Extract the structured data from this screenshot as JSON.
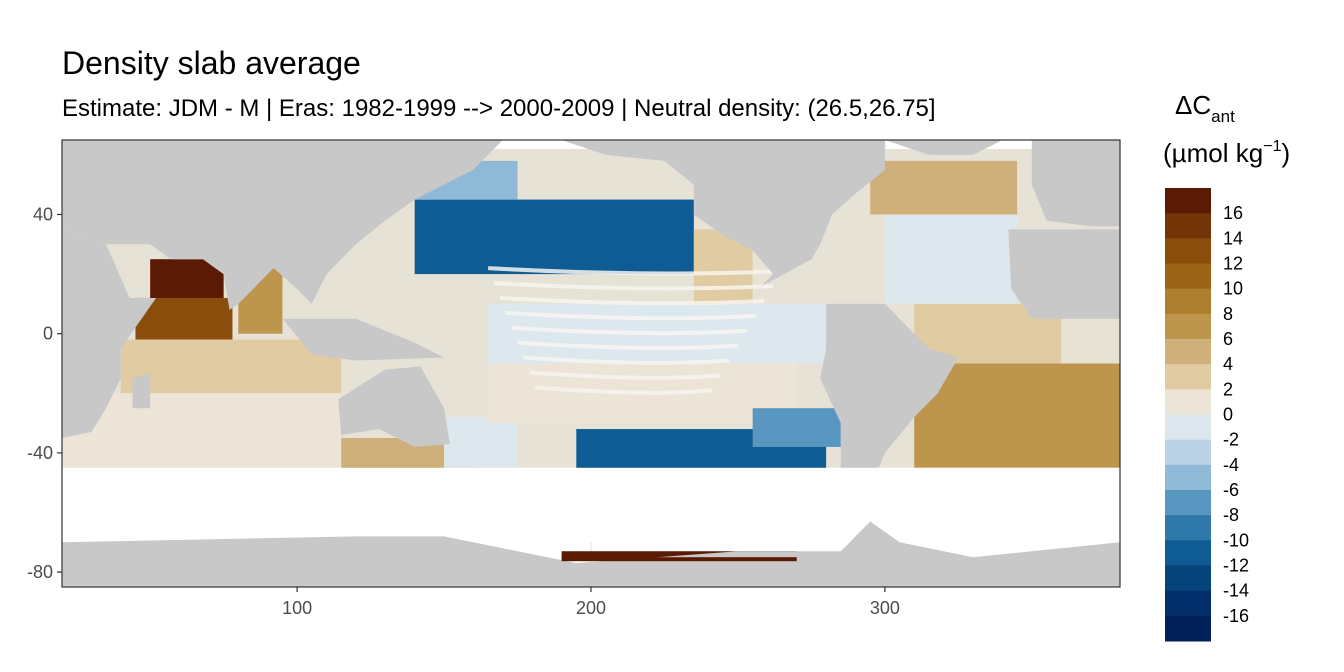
{
  "chart_data": {
    "type": "heatmap",
    "title": "Density slab average",
    "subtitle": "Estimate: JDM - M | Eras: 1982-1999 --> 2000-2009 | Neutral density: (26.5,26.75]",
    "xlabel": "",
    "ylabel": "",
    "xlim": [
      20,
      380
    ],
    "ylim": [
      -85,
      65
    ],
    "x_ticks": [
      100,
      200,
      300
    ],
    "y_ticks": [
      40,
      0,
      -40,
      -80
    ],
    "x_tick_labels": [
      "100",
      "200",
      "300"
    ],
    "y_tick_labels": [
      "40",
      "0",
      "-40",
      "-80"
    ],
    "grid": true,
    "land_color": "#c8c8c8",
    "legend": {
      "title_main": "ΔC",
      "title_sub": "ant",
      "title_units_prefix": "(µmol kg",
      "title_units_sup": "−1",
      "title_units_suffix": ")",
      "placement": "right",
      "labels": [
        "16",
        "14",
        "12",
        "10",
        "8",
        "6",
        "4",
        "2",
        "0",
        "-2",
        "-4",
        "-6",
        "-8",
        "-10",
        "-12",
        "-14",
        "-16"
      ],
      "bins": [
        {
          "lo": 16,
          "hi": 18,
          "color": "#5a1a04"
        },
        {
          "lo": 14,
          "hi": 16,
          "color": "#733407"
        },
        {
          "lo": 12,
          "hi": 14,
          "color": "#8b4d0b"
        },
        {
          "lo": 10,
          "hi": 12,
          "color": "#9c6417"
        },
        {
          "lo": 8,
          "hi": 10,
          "color": "#ad7e2d"
        },
        {
          "lo": 6,
          "hi": 8,
          "color": "#bd954d"
        },
        {
          "lo": 4,
          "hi": 6,
          "color": "#cfb07a"
        },
        {
          "lo": 2,
          "hi": 4,
          "color": "#e0cba3"
        },
        {
          "lo": 0,
          "hi": 2,
          "color": "#ece5d7"
        },
        {
          "lo": -2,
          "hi": 0,
          "color": "#dde8ee"
        },
        {
          "lo": -4,
          "hi": -2,
          "color": "#b9d2e3"
        },
        {
          "lo": -6,
          "hi": -4,
          "color": "#8fb9d6"
        },
        {
          "lo": -8,
          "hi": -6,
          "color": "#5a97c0"
        },
        {
          "lo": -10,
          "hi": -8,
          "color": "#2f78aa"
        },
        {
          "lo": -12,
          "hi": -10,
          "color": "#0f5b93"
        },
        {
          "lo": -14,
          "hi": -12,
          "color": "#05437b"
        },
        {
          "lo": -16,
          "hi": -14,
          "color": "#022f69"
        },
        {
          "lo": -18,
          "hi": -16,
          "color": "#01205a"
        }
      ]
    },
    "regions": [
      {
        "name": "arabian-sea-north",
        "lon": [
          50,
          75
        ],
        "lat": [
          8,
          25
        ],
        "value": 16
      },
      {
        "name": "arabian-sea",
        "lon": [
          45,
          78
        ],
        "lat": [
          -2,
          12
        ],
        "value": 12
      },
      {
        "name": "bay-of-bengal",
        "lon": [
          80,
          95
        ],
        "lat": [
          0,
          22
        ],
        "value": 7
      },
      {
        "name": "indian-ocean-tropical",
        "lon": [
          40,
          115
        ],
        "lat": [
          -20,
          -2
        ],
        "value": 3
      },
      {
        "name": "indian-ocean-south",
        "lon": [
          20,
          115
        ],
        "lat": [
          -45,
          -20
        ],
        "value": 1
      },
      {
        "name": "south-of-australia",
        "lon": [
          115,
          160
        ],
        "lat": [
          -48,
          -35
        ],
        "value": 5
      },
      {
        "name": "tasman-sea",
        "lon": [
          150,
          175
        ],
        "lat": [
          -45,
          -28
        ],
        "value": -1
      },
      {
        "name": "north-pacific-west-jet",
        "lon": [
          140,
          235
        ],
        "lat": [
          20,
          45
        ],
        "value": -12
      },
      {
        "name": "north-pacific-northwest",
        "lon": [
          140,
          175
        ],
        "lat": [
          45,
          58
        ],
        "value": -6
      },
      {
        "name": "north-pacific-east",
        "lon": [
          235,
          255
        ],
        "lat": [
          10,
          35
        ],
        "value": 3
      },
      {
        "name": "equatorial-pacific",
        "lon": [
          165,
          280
        ],
        "lat": [
          -10,
          10
        ],
        "value": -2
      },
      {
        "name": "south-pacific-central",
        "lon": [
          165,
          270
        ],
        "lat": [
          -30,
          -10
        ],
        "value": 1
      },
      {
        "name": "south-pacific-southeast",
        "lon": [
          195,
          280
        ],
        "lat": [
          -48,
          -32
        ],
        "value": -12
      },
      {
        "name": "south-pacific-east",
        "lon": [
          255,
          285
        ],
        "lat": [
          -38,
          -25
        ],
        "value": -8
      },
      {
        "name": "north-atlantic-subpolar",
        "lon": [
          295,
          345
        ],
        "lat": [
          40,
          58
        ],
        "value": 4
      },
      {
        "name": "north-atlantic-subtropical",
        "lon": [
          300,
          345
        ],
        "lat": [
          10,
          40
        ],
        "value": -2
      },
      {
        "name": "tropical-atlantic",
        "lon": [
          310,
          360
        ],
        "lat": [
          -10,
          10
        ],
        "value": 2
      },
      {
        "name": "south-atlantic",
        "lon": [
          310,
          380
        ],
        "lat": [
          -45,
          -10
        ],
        "value": 6
      },
      {
        "name": "antarctic-coast-shelf",
        "lon": [
          190,
          270
        ],
        "lat": [
          -76,
          -73
        ],
        "value": 17
      }
    ]
  }
}
